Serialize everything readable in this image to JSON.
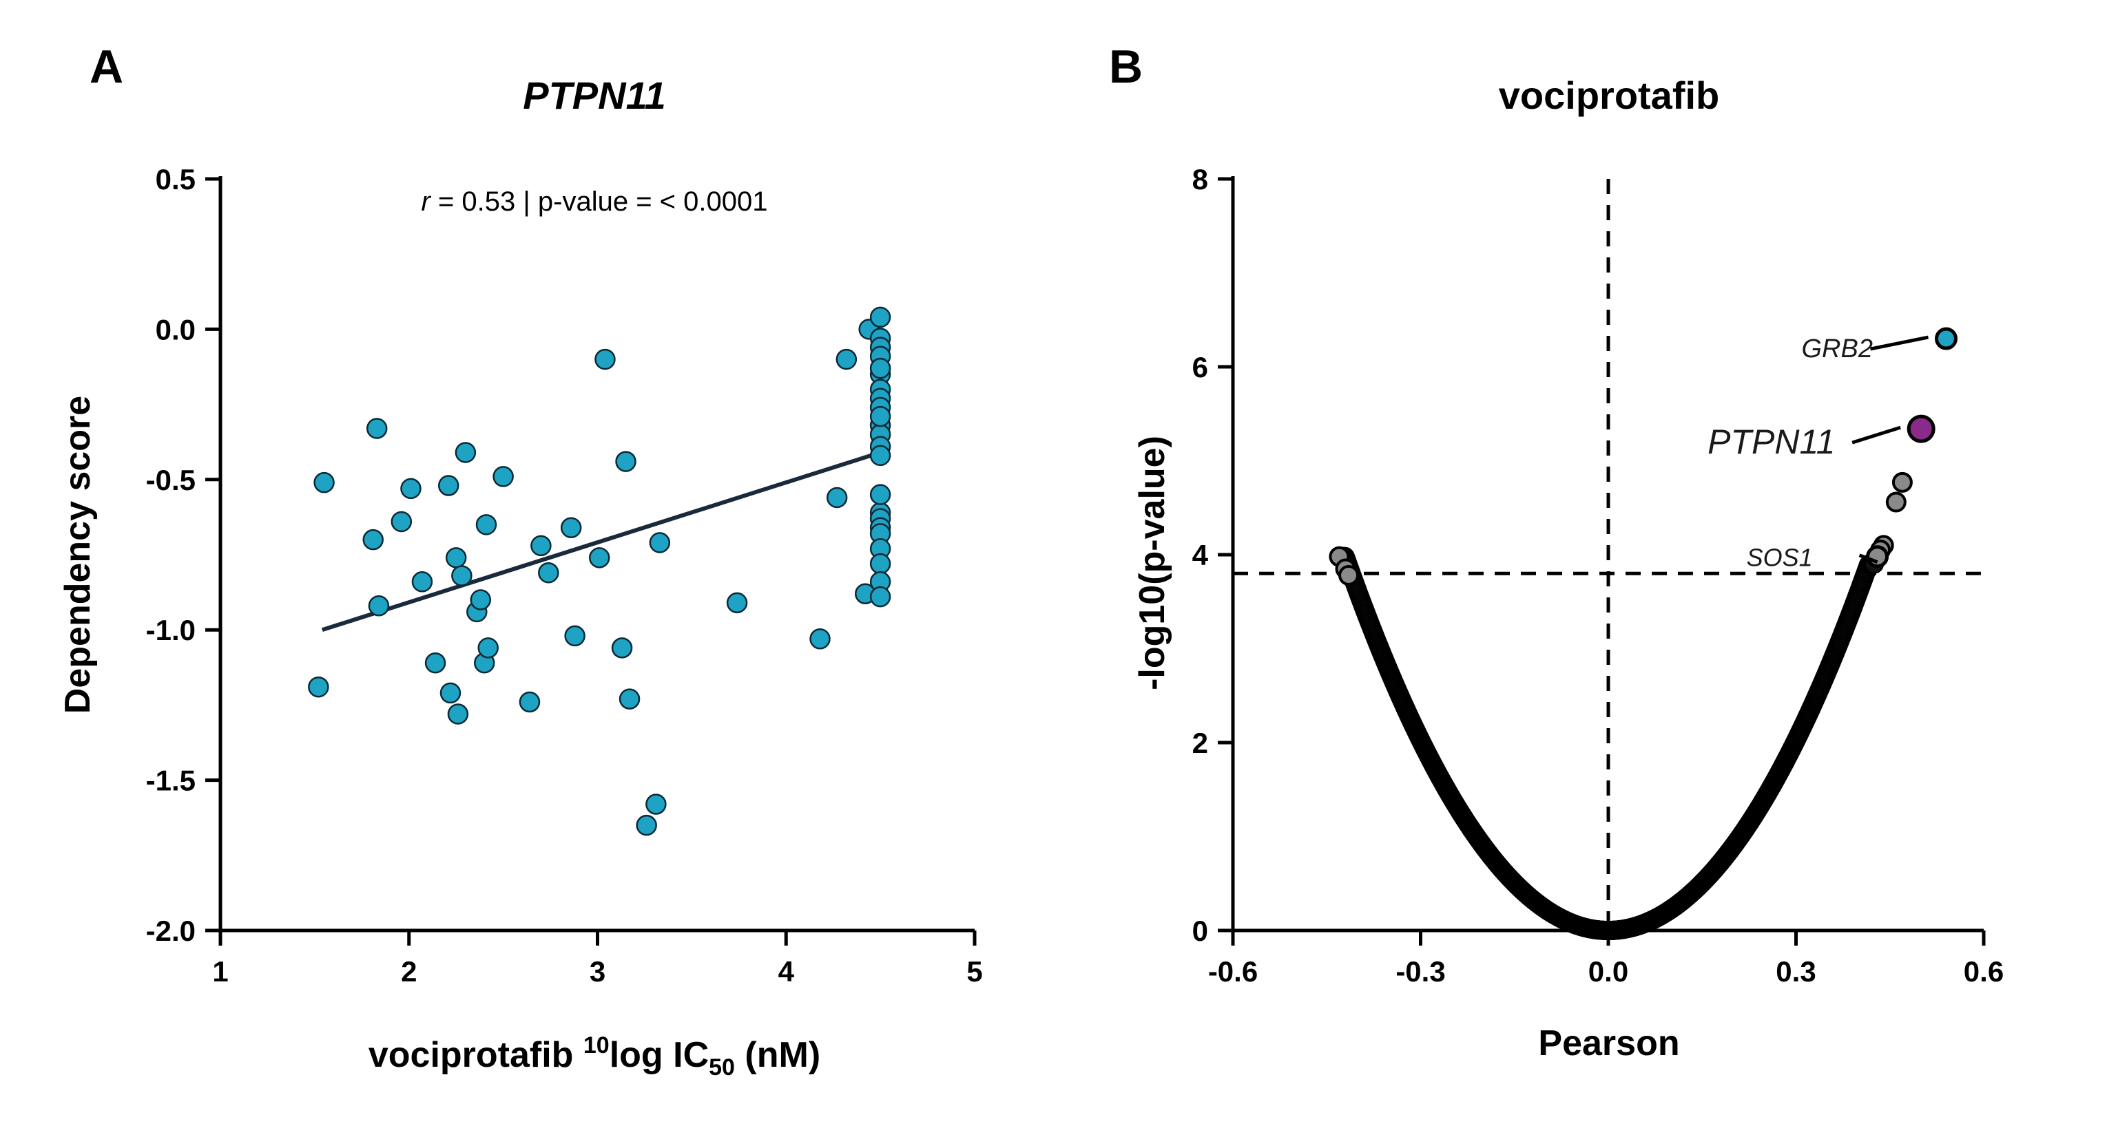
{
  "colors": {
    "teal": "#1fa3c4",
    "black": "#000000",
    "gray_point": "#8a8a8a",
    "purple": "#8a2a8a",
    "regression": "#1a2a3a"
  },
  "chart_data": [
    {
      "type": "scatter",
      "panel": "A",
      "title": "PTPN11",
      "xlabel": {
        "pre": "vociprotafib ",
        "sup": "10",
        "mid": "log IC",
        "sub": "50",
        "post": " (nM)"
      },
      "ylabel": "Dependency score",
      "xlim": [
        1,
        5
      ],
      "ylim": [
        -2.0,
        0.5
      ],
      "xticks": [
        "1",
        "2",
        "3",
        "4",
        "5"
      ],
      "yticks": [
        "0.5",
        "0.0",
        "-0.5",
        "-1.0",
        "-1.5",
        "-2.0"
      ],
      "annotation": {
        "r_symbol": "r",
        "text": " = 0.53 | p-value = < 0.0001"
      },
      "regression": {
        "x": [
          1.54,
          4.5
        ],
        "y": [
          -1.0,
          -0.41
        ]
      },
      "points": {
        "x": [
          1.52,
          1.55,
          1.81,
          1.83,
          1.84,
          1.96,
          2.01,
          2.07,
          2.14,
          2.21,
          2.22,
          2.25,
          2.26,
          2.28,
          2.3,
          2.36,
          2.38,
          2.4,
          2.41,
          2.42,
          2.5,
          2.64,
          2.7,
          2.74,
          2.86,
          2.88,
          3.01,
          3.04,
          3.13,
          3.15,
          3.17,
          3.26,
          3.31,
          3.33,
          3.74,
          4.18,
          4.27,
          4.32,
          4.42,
          4.44,
          4.5,
          4.5,
          4.5,
          4.5,
          4.5,
          4.5,
          4.5,
          4.5,
          4.5,
          4.5,
          4.5,
          4.5,
          4.5,
          4.5,
          4.5,
          4.5,
          4.5,
          4.5,
          4.5,
          4.5,
          4.5,
          4.5,
          4.5,
          4.5
        ],
        "y": [
          -1.19,
          -0.51,
          -0.7,
          -0.33,
          -0.92,
          -0.64,
          -0.53,
          -0.84,
          -1.11,
          -0.52,
          -1.21,
          -0.76,
          -1.28,
          -0.82,
          -0.41,
          -0.94,
          -0.9,
          -1.11,
          -0.65,
          -1.06,
          -0.49,
          -1.24,
          -0.72,
          -0.81,
          -0.66,
          -1.02,
          -0.76,
          -0.1,
          -1.06,
          -0.44,
          -1.23,
          -1.65,
          -1.58,
          -0.71,
          -0.91,
          -1.03,
          -0.56,
          -0.1,
          -0.88,
          0.0,
          0.04,
          -0.03,
          -0.06,
          -0.09,
          -0.13,
          -0.15,
          -0.2,
          -0.23,
          -0.26,
          -0.32,
          -0.35,
          -0.39,
          -0.42,
          -0.61,
          -0.63,
          -0.66,
          -0.68,
          -0.73,
          -0.78,
          -0.84,
          -0.89,
          -0.29,
          -0.13,
          -0.55
        ]
      }
    },
    {
      "type": "scatter",
      "panel": "B",
      "title": "vociprotafib",
      "xlabel": "Pearson",
      "ylabel": "-log10(p-value)",
      "xlim": [
        -0.6,
        0.6
      ],
      "ylim": [
        0,
        8
      ],
      "xticks": [
        "-0.6",
        "-0.3",
        "0.0",
        "0.3",
        "0.6"
      ],
      "yticks": [
        "0",
        "2",
        "4",
        "6",
        "8"
      ],
      "significance_threshold_y": 3.8,
      "vertical_reference_x": 0.0,
      "highlighted": [
        {
          "gene": "GRB2",
          "x": 0.54,
          "y": 6.3,
          "color": "teal"
        },
        {
          "gene": "PTPN11",
          "x": 0.5,
          "y": 5.34,
          "color": "purple"
        },
        {
          "gene": "SOS1",
          "x": 0.43,
          "y": 3.98,
          "color": "gray"
        }
      ],
      "extra_significant_points": {
        "x": [
          -0.43,
          -0.42,
          -0.415,
          0.47,
          0.46,
          0.44,
          0.435
        ],
        "y": [
          3.98,
          3.85,
          3.78,
          4.77,
          4.56,
          4.1,
          4.05
        ]
      },
      "curve_note": "dense point cloud along a V-shaped band from (-0.43, 4.0) down to (0, 0) and up to (0.43, 3.9)"
    }
  ]
}
